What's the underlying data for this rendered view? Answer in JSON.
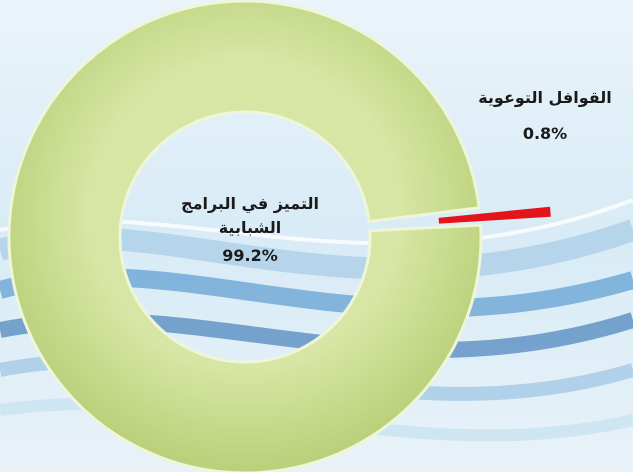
{
  "chart_data": {
    "type": "donut",
    "categories": [
      "التميز في البرامج الشبابية",
      "القوافل التوعوية"
    ],
    "values": [
      99.2,
      0.8
    ],
    "value_labels": [
      "99.2%",
      "0.8%"
    ],
    "colors": [
      "#c9dc8e",
      "#e3151b"
    ]
  }
}
